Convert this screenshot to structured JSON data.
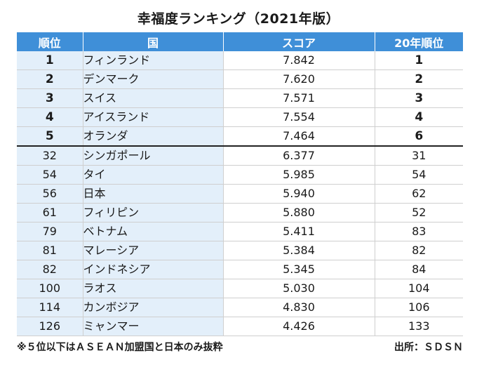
{
  "title": "幸福度ランキング（2021年版）",
  "table": {
    "headers": [
      "順位",
      "国",
      "スコア",
      "20年順位"
    ],
    "rows": [
      {
        "rank": "1",
        "country": "フィンランド",
        "score": "7.842",
        "prev": "1"
      },
      {
        "rank": "2",
        "country": "デンマーク",
        "score": "7.620",
        "prev": "2"
      },
      {
        "rank": "3",
        "country": "スイス",
        "score": "7.571",
        "prev": "3"
      },
      {
        "rank": "4",
        "country": "アイスランド",
        "score": "7.554",
        "prev": "4"
      },
      {
        "rank": "5",
        "country": "オランダ",
        "score": "7.464",
        "prev": "6"
      },
      {
        "rank": "32",
        "country": "シンガポール",
        "score": "6.377",
        "prev": "31"
      },
      {
        "rank": "54",
        "country": "タイ",
        "score": "5.985",
        "prev": "54"
      },
      {
        "rank": "56",
        "country": "日本",
        "score": "5.940",
        "prev": "62"
      },
      {
        "rank": "61",
        "country": "フィリピン",
        "score": "5.880",
        "prev": "52"
      },
      {
        "rank": "79",
        "country": "ベトナム",
        "score": "5.411",
        "prev": "83"
      },
      {
        "rank": "81",
        "country": "マレーシア",
        "score": "5.384",
        "prev": "82"
      },
      {
        "rank": "82",
        "country": "インドネシア",
        "score": "5.345",
        "prev": "84"
      },
      {
        "rank": "100",
        "country": "ラオス",
        "score": "5.030",
        "prev": "104"
      },
      {
        "rank": "114",
        "country": "カンボジア",
        "score": "4.830",
        "prev": "106"
      },
      {
        "rank": "126",
        "country": "ミャンマー",
        "score": "4.426",
        "prev": "133"
      }
    ]
  },
  "footer": {
    "note": "※５位以下はＡＳＥＡＮ加盟国と日本のみ抜粋",
    "source": "出所：ＳＤＳＮ"
  },
  "colors": {
    "header_bg": "#3f8fd8",
    "highlight_column_bg": "#e3effa"
  }
}
